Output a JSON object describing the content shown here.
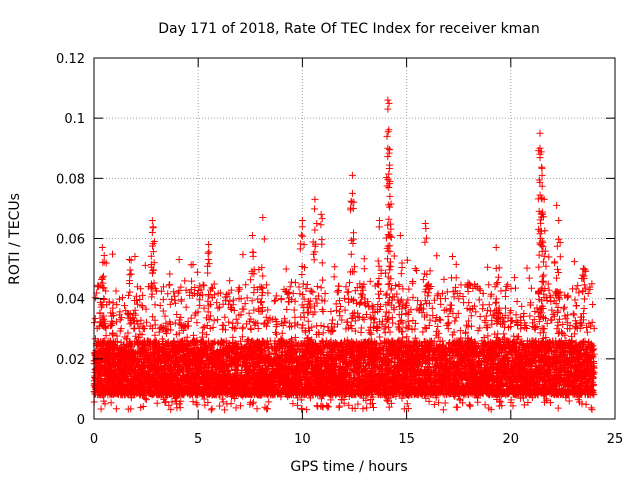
{
  "chart_data": {
    "type": "scatter",
    "title": "Day 171 of 2018, Rate Of TEC Index for receiver kman",
    "xlabel": "GPS time / hours",
    "ylabel": "ROTI / TECUs",
    "xlim": [
      0,
      25
    ],
    "ylim": [
      0,
      0.12
    ],
    "x_ticks": [
      0,
      5,
      10,
      15,
      20,
      25
    ],
    "x_tick_labels": [
      "0",
      "5",
      "10",
      "15",
      "20",
      "25"
    ],
    "y_ticks": [
      0,
      0.02,
      0.04,
      0.06,
      0.08,
      0.1,
      0.12
    ],
    "y_tick_labels": [
      "0",
      "0.02",
      "0.04",
      "0.06",
      "0.08",
      "0.1",
      "0.12"
    ],
    "grid": true,
    "marker": "+",
    "series": [
      {
        "name": "ROTI",
        "color": "#ff0000",
        "x_range": [
          0,
          24
        ],
        "baseline_range": [
          0.003,
          0.035
        ],
        "notable_points": [
          {
            "x": 0.4,
            "y": 0.057
          },
          {
            "x": 0.4,
            "y": 0.047
          },
          {
            "x": 1.7,
            "y": 0.053
          },
          {
            "x": 2.8,
            "y": 0.066
          },
          {
            "x": 2.8,
            "y": 0.062
          },
          {
            "x": 5.5,
            "y": 0.058
          },
          {
            "x": 7.6,
            "y": 0.061
          },
          {
            "x": 8.1,
            "y": 0.067
          },
          {
            "x": 10.0,
            "y": 0.066
          },
          {
            "x": 10.6,
            "y": 0.073
          },
          {
            "x": 10.9,
            "y": 0.068
          },
          {
            "x": 12.4,
            "y": 0.081
          },
          {
            "x": 12.4,
            "y": 0.075
          },
          {
            "x": 13.7,
            "y": 0.066
          },
          {
            "x": 14.1,
            "y": 0.106
          },
          {
            "x": 14.1,
            "y": 0.103
          },
          {
            "x": 14.1,
            "y": 0.09
          },
          {
            "x": 14.2,
            "y": 0.079
          },
          {
            "x": 14.2,
            "y": 0.074
          },
          {
            "x": 14.7,
            "y": 0.061
          },
          {
            "x": 15.9,
            "y": 0.065
          },
          {
            "x": 19.3,
            "y": 0.057
          },
          {
            "x": 21.4,
            "y": 0.095
          },
          {
            "x": 21.4,
            "y": 0.09
          },
          {
            "x": 21.4,
            "y": 0.088
          },
          {
            "x": 21.5,
            "y": 0.081
          },
          {
            "x": 21.6,
            "y": 0.073
          },
          {
            "x": 21.5,
            "y": 0.068
          },
          {
            "x": 22.2,
            "y": 0.071
          },
          {
            "x": 22.3,
            "y": 0.066
          },
          {
            "x": 23.5,
            "y": 0.05
          }
        ]
      }
    ]
  }
}
